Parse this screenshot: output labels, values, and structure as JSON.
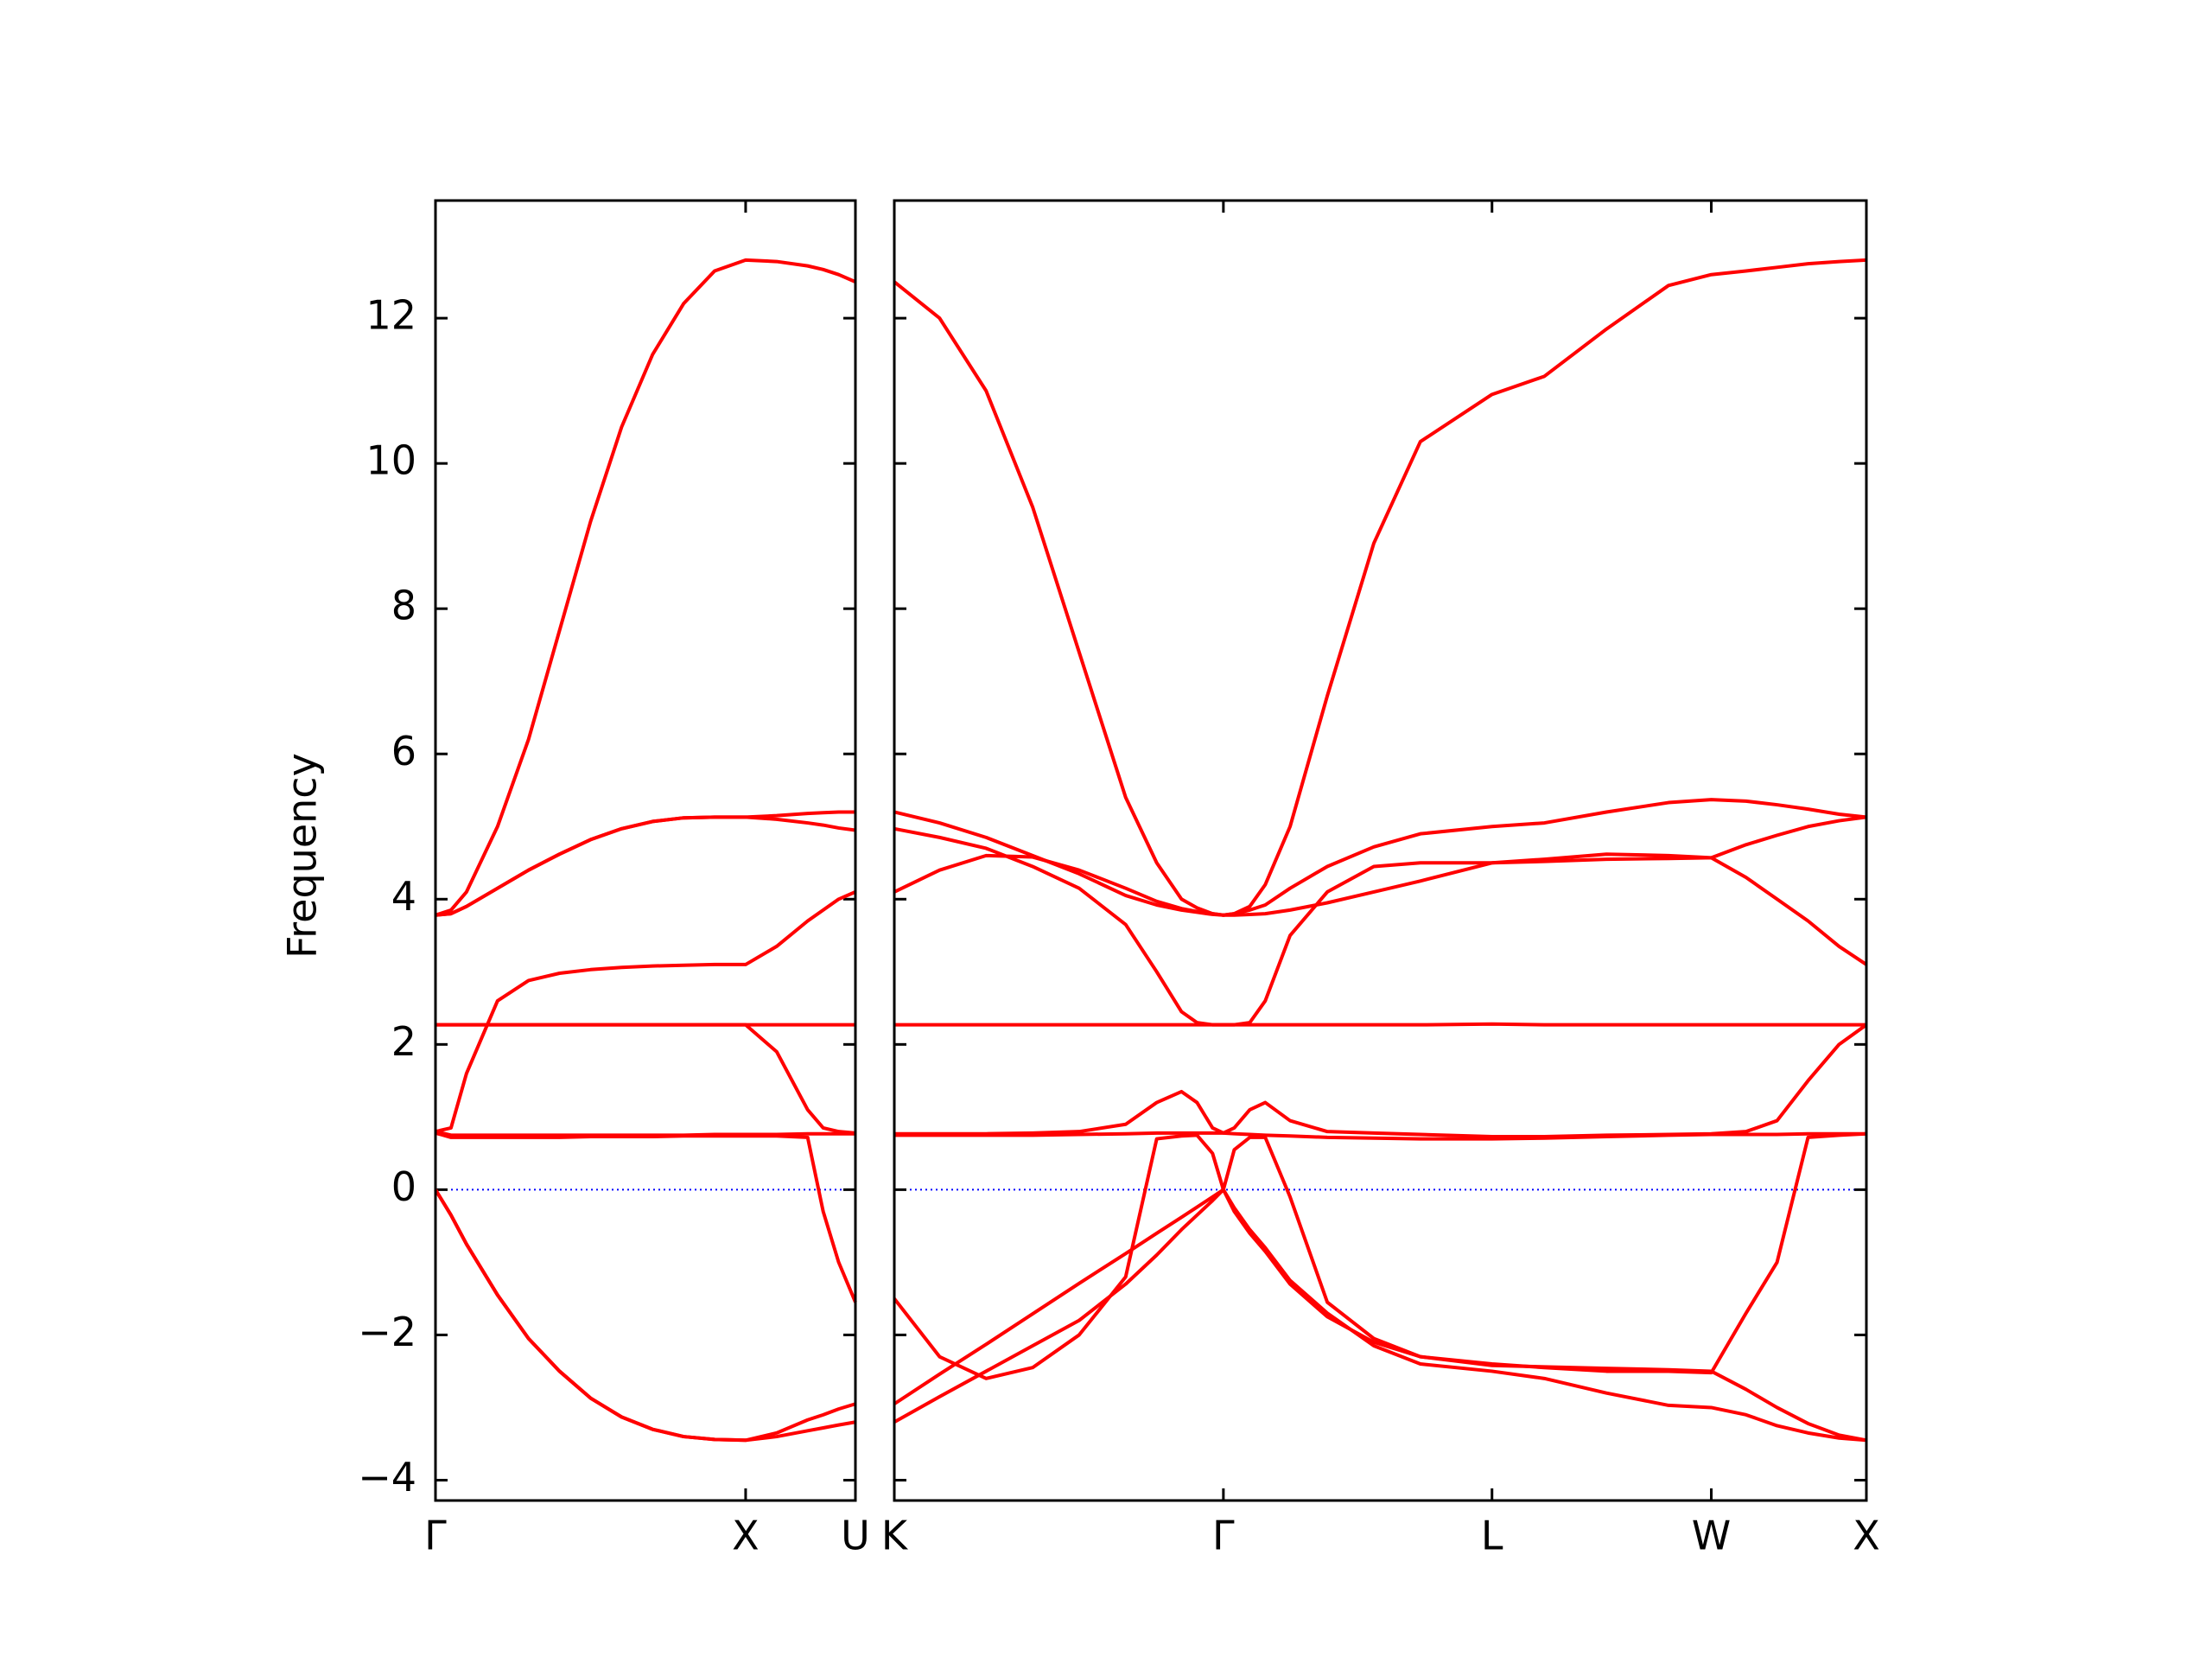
{
  "chart_data": [
    {
      "type": "line",
      "ylabel": "Frequency",
      "xlim": [
        0,
        1.354
      ],
      "ylim": [
        -4.28,
        13.62
      ],
      "xticks": [
        {
          "value": 0,
          "label": "Γ"
        },
        {
          "value": 1.0,
          "label": "X"
        },
        {
          "value": 1.354,
          "label": "U"
        }
      ],
      "yticks": [
        {
          "value": -4,
          "label": "−4"
        },
        {
          "value": -2,
          "label": "−2"
        },
        0,
        2,
        4,
        6,
        8,
        10,
        12
      ],
      "hline": 0,
      "hline_color": "#0000ff",
      "x": [
        0,
        0.05,
        0.1,
        0.2,
        0.3,
        0.4,
        0.5,
        0.6,
        0.7,
        0.8,
        0.9,
        1.0,
        1.1,
        1.2,
        1.25,
        1.3,
        1.354
      ],
      "series": [
        {
          "color": "#ff0000",
          "values": [
            3.78,
            3.85,
            4.1,
            5.0,
            6.2,
            7.7,
            9.2,
            10.5,
            11.5,
            12.2,
            12.65,
            12.8,
            12.78,
            12.72,
            12.67,
            12.6,
            12.5
          ]
        },
        {
          "color": "#ff0000",
          "values": [
            3.78,
            3.8,
            3.9,
            4.15,
            4.4,
            4.62,
            4.82,
            4.97,
            5.07,
            5.12,
            5.13,
            5.13,
            5.15,
            5.18,
            5.19,
            5.2,
            5.2
          ]
        },
        {
          "color": "#ff0000",
          "values": [
            3.78,
            3.8,
            3.9,
            4.15,
            4.4,
            4.62,
            4.82,
            4.97,
            5.07,
            5.12,
            5.13,
            5.13,
            5.1,
            5.05,
            5.02,
            4.98,
            4.95
          ]
        },
        {
          "color": "#ff0000",
          "values": [
            0.8,
            0.85,
            1.6,
            2.6,
            2.88,
            2.98,
            3.03,
            3.06,
            3.08,
            3.09,
            3.1,
            3.1,
            3.35,
            3.7,
            3.85,
            4.0,
            4.1
          ]
        },
        {
          "color": "#ff0000",
          "values": [
            2.27,
            2.27,
            2.27,
            2.27,
            2.27,
            2.27,
            2.27,
            2.27,
            2.27,
            2.27,
            2.27,
            2.27,
            2.27,
            2.27,
            2.27,
            2.27,
            2.27
          ]
        },
        {
          "color": "#ff0000",
          "values": [
            2.27,
            2.27,
            2.27,
            2.27,
            2.27,
            2.27,
            2.27,
            2.27,
            2.27,
            2.27,
            2.27,
            2.27,
            1.9,
            1.1,
            0.85,
            0.8,
            0.78
          ]
        },
        {
          "color": "#ff0000",
          "values": [
            0.8,
            0.75,
            0.75,
            0.75,
            0.75,
            0.75,
            0.75,
            0.75,
            0.75,
            0.75,
            0.76,
            0.76,
            0.76,
            0.77,
            0.77,
            0.77,
            0.77
          ]
        },
        {
          "color": "#ff0000",
          "values": [
            0.78,
            0.72,
            0.72,
            0.72,
            0.72,
            0.72,
            0.73,
            0.73,
            0.73,
            0.74,
            0.74,
            0.74,
            0.74,
            0.72,
            -0.3,
            -1.0,
            -1.55
          ]
        },
        {
          "color": "#ff0000",
          "values": [
            0,
            -0.35,
            -0.75,
            -1.45,
            -2.05,
            -2.5,
            -2.87,
            -3.13,
            -3.3,
            -3.4,
            -3.44,
            -3.45,
            -3.4,
            -3.32,
            -3.28,
            -3.24,
            -3.2
          ]
        },
        {
          "color": "#ff0000",
          "values": [
            0,
            -0.35,
            -0.75,
            -1.45,
            -2.05,
            -2.5,
            -2.87,
            -3.13,
            -3.3,
            -3.4,
            -3.44,
            -3.45,
            -3.35,
            -3.17,
            -3.1,
            -3.02,
            -2.95
          ]
        }
      ]
    },
    {
      "type": "line",
      "xlim": [
        1.354,
        4.488
      ],
      "xticks": [
        {
          "value": 1.354,
          "label": "K"
        },
        {
          "value": 2.415,
          "label": "Γ"
        },
        {
          "value": 3.281,
          "label": "L"
        },
        {
          "value": 3.988,
          "label": "W"
        },
        {
          "value": 4.488,
          "label": "X"
        }
      ],
      "hline": 0,
      "hline_color": "#0000ff",
      "x": [
        1.354,
        1.5,
        1.65,
        1.8,
        1.95,
        2.1,
        2.2,
        2.28,
        2.33,
        2.38,
        2.415,
        2.45,
        2.5,
        2.55,
        2.63,
        2.75,
        2.9,
        3.05,
        3.281,
        3.45,
        3.65,
        3.85,
        3.988,
        4.1,
        4.2,
        4.3,
        4.4,
        4.488
      ],
      "series": [
        {
          "color": "#ff0000",
          "values": [
            12.5,
            12.0,
            11.0,
            9.4,
            7.4,
            5.4,
            4.5,
            4.0,
            3.88,
            3.8,
            3.78,
            3.8,
            3.9,
            4.2,
            5.0,
            6.8,
            8.9,
            10.3,
            10.95,
            11.2,
            11.85,
            12.45,
            12.6,
            12.65,
            12.7,
            12.75,
            12.78,
            12.8
          ]
        },
        {
          "color": "#ff0000",
          "values": [
            5.2,
            5.05,
            4.85,
            4.6,
            4.35,
            4.05,
            3.92,
            3.85,
            3.82,
            3.79,
            3.78,
            3.8,
            3.85,
            3.92,
            4.15,
            4.45,
            4.72,
            4.9,
            5.0,
            5.05,
            5.2,
            5.33,
            5.37,
            5.35,
            5.3,
            5.24,
            5.17,
            5.13
          ]
        },
        {
          "color": "#ff0000",
          "values": [
            4.97,
            4.85,
            4.7,
            4.45,
            4.15,
            3.65,
            3.0,
            2.45,
            2.3,
            2.27,
            2.27,
            2.27,
            2.3,
            2.6,
            3.5,
            4.1,
            4.45,
            4.5,
            4.5,
            4.55,
            4.62,
            4.6,
            4.57,
            4.3,
            4.0,
            3.7,
            3.35,
            3.1
          ]
        },
        {
          "color": "#ff0000",
          "values": [
            4.1,
            4.4,
            4.6,
            4.58,
            4.4,
            4.15,
            3.97,
            3.87,
            3.83,
            3.8,
            3.78,
            3.78,
            3.79,
            3.8,
            3.85,
            3.95,
            4.1,
            4.25,
            4.5,
            4.52,
            4.55,
            4.56,
            4.57,
            4.75,
            4.88,
            5.0,
            5.08,
            5.13
          ]
        },
        {
          "color": "#ff0000",
          "values": [
            2.27,
            2.27,
            2.27,
            2.27,
            2.27,
            2.27,
            2.27,
            2.27,
            2.27,
            2.27,
            2.27,
            2.27,
            2.27,
            2.27,
            2.27,
            2.27,
            2.27,
            2.27,
            2.28,
            2.27,
            2.27,
            2.27,
            2.27,
            2.27,
            2.27,
            2.27,
            2.27,
            2.27
          ]
        },
        {
          "color": "#ff0000",
          "values": [
            0.77,
            0.77,
            0.77,
            0.78,
            0.8,
            0.9,
            1.2,
            1.35,
            1.2,
            0.85,
            0.78,
            0.85,
            1.1,
            1.2,
            0.95,
            0.8,
            0.78,
            0.76,
            0.73,
            0.73,
            0.75,
            0.76,
            0.77,
            0.8,
            0.95,
            1.5,
            2.0,
            2.27
          ]
        },
        {
          "color": "#ff0000",
          "values": [
            0.75,
            0.75,
            0.75,
            0.75,
            0.76,
            0.77,
            0.78,
            0.78,
            0.78,
            0.78,
            0.78,
            0.77,
            0.76,
            0.75,
            0.74,
            0.72,
            0.71,
            0.7,
            0.7,
            0.71,
            0.73,
            0.75,
            0.76,
            0.76,
            0.76,
            0.77,
            0.77,
            0.77
          ]
        },
        {
          "color": "#ff0000",
          "values": [
            -1.5,
            -2.3,
            -2.6,
            -2.45,
            -2.0,
            -1.2,
            0.7,
            0.74,
            0.75,
            0.5,
            0,
            0.55,
            0.72,
            0.72,
            -0.1,
            -1.55,
            -2.05,
            -2.3,
            -2.4,
            -2.45,
            -2.5,
            -2.5,
            -2.52,
            -1.7,
            -1.0,
            0.72,
            0.75,
            0.77
          ]
        },
        {
          "color": "#ff0000",
          "values": [
            -2.95,
            -2.54,
            -2.13,
            -1.71,
            -1.29,
            -0.88,
            -0.6,
            -0.38,
            -0.24,
            -0.1,
            0,
            -0.3,
            -0.6,
            -0.85,
            -1.3,
            -1.75,
            -2.1,
            -2.3,
            -2.42,
            -2.44,
            -2.46,
            -2.48,
            -2.5,
            -2.75,
            -3.0,
            -3.22,
            -3.38,
            -3.45
          ]
        },
        {
          "color": "#ff0000",
          "values": [
            -3.2,
            -2.85,
            -2.5,
            -2.15,
            -1.8,
            -1.3,
            -0.9,
            -0.55,
            -0.35,
            -0.15,
            0,
            -0.25,
            -0.55,
            -0.8,
            -1.25,
            -1.7,
            -2.15,
            -2.4,
            -2.5,
            -2.6,
            -2.8,
            -2.97,
            -3.0,
            -3.1,
            -3.25,
            -3.35,
            -3.42,
            -3.45
          ]
        }
      ]
    }
  ]
}
